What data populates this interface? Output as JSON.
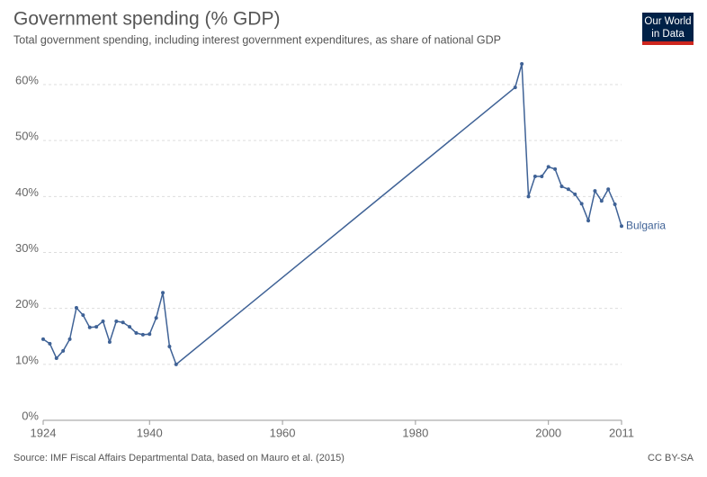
{
  "header": {
    "logo_line1": "Our World",
    "logo_line2": "in Data"
  },
  "chart_data": {
    "type": "line",
    "title": "Government spending (% GDP)",
    "subtitle": "Total government spending, including interest government expenditures, as share of national GDP",
    "source": "Source: IMF Fiscal Affairs Departmental Data, based on Mauro et al. (2015)",
    "license": "CC BY-SA",
    "x": [
      1924,
      1925,
      1926,
      1927,
      1928,
      1929,
      1930,
      1931,
      1932,
      1933,
      1934,
      1935,
      1936,
      1937,
      1938,
      1939,
      1940,
      1941,
      1942,
      1943,
      1944,
      1995,
      1996,
      1997,
      1998,
      1999,
      2000,
      2001,
      2002,
      2003,
      2004,
      2005,
      2006,
      2007,
      2008,
      2009,
      2010,
      2011
    ],
    "series": [
      {
        "name": "Bulgaria",
        "color": "#3f6296",
        "values": [
          14.5,
          13.7,
          11.1,
          12.4,
          14.5,
          20.1,
          18.8,
          16.6,
          16.7,
          17.7,
          14.0,
          17.7,
          17.5,
          16.7,
          15.6,
          15.3,
          15.4,
          18.3,
          22.8,
          13.2,
          10.0,
          59.5,
          63.7,
          40.0,
          43.6,
          43.6,
          45.3,
          44.9,
          41.8,
          41.3,
          40.4,
          38.7,
          35.7,
          41.0,
          39.2,
          41.3,
          38.6,
          34.7
        ]
      }
    ],
    "xlim": [
      1924,
      2011
    ],
    "xticks": [
      1924,
      1940,
      1960,
      1980,
      2000,
      2011
    ],
    "ylim": [
      0,
      60
    ],
    "yticks": [
      {
        "value": 0,
        "label": "0%"
      },
      {
        "value": 10,
        "label": "10%"
      },
      {
        "value": 20,
        "label": "20%"
      },
      {
        "value": 30,
        "label": "30%"
      },
      {
        "value": 40,
        "label": "40%"
      },
      {
        "value": 50,
        "label": "50%"
      },
      {
        "value": 60,
        "label": "60%"
      }
    ],
    "grid": true
  }
}
